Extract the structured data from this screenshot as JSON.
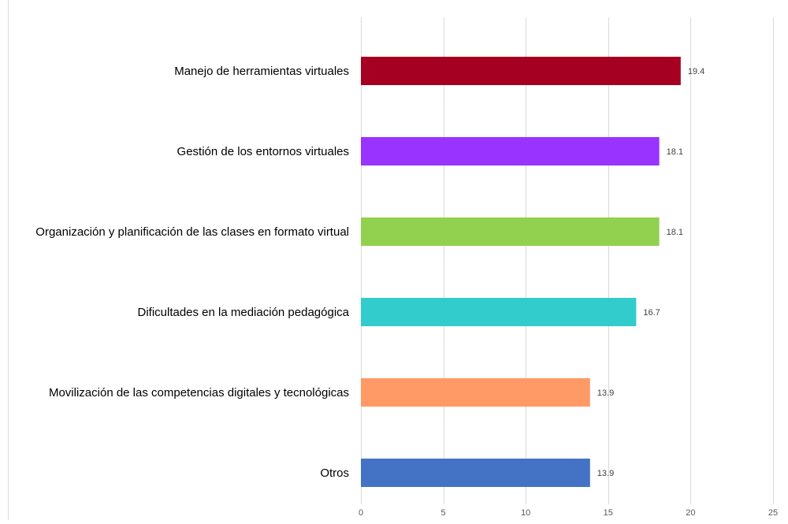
{
  "chart_data": {
    "type": "bar",
    "orientation": "horizontal",
    "title": "",
    "xlabel": "",
    "ylabel": "",
    "xlim": [
      0,
      25
    ],
    "x_ticks": [
      "0",
      "5",
      "10",
      "15",
      "20",
      "25"
    ],
    "grid": "vertical",
    "legend": "none",
    "categories": [
      "Manejo de herramientas virtuales",
      "Gestión de los entornos virtuales",
      "Organización y planificación de las clases en formato virtual",
      "Dificultades en la mediación pedagógica",
      "Movilización de las competencias digitales y tecnológicas",
      "Otros"
    ],
    "values": [
      19.4,
      18.1,
      18.1,
      16.7,
      13.9,
      13.9
    ],
    "value_labels": [
      "19.4",
      "18.1",
      "18.1",
      "16.7",
      "13.9",
      "13.9"
    ],
    "colors": [
      "#a50021",
      "#9933ff",
      "#92d050",
      "#33cccc",
      "#ff9966",
      "#4472c4"
    ]
  }
}
